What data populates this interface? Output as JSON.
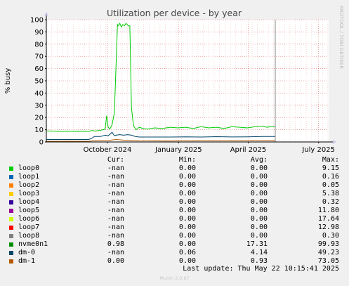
{
  "chart_data": {
    "type": "line",
    "title": "Utilization per device - by year",
    "ylabel": "% busy",
    "side_label": "RRDTOOL / TOBI OETIKER",
    "ylim": [
      0,
      100
    ],
    "yticks": [
      0,
      10,
      20,
      30,
      40,
      50,
      60,
      70,
      80,
      90,
      100
    ],
    "x_range_days": [
      0,
      365
    ],
    "xticks": [
      {
        "label": "October 2024",
        "day": 79
      },
      {
        "label": "January 2025",
        "day": 171
      },
      {
        "label": "April 2025",
        "day": 261
      },
      {
        "label": "July 2025",
        "day": 352
      }
    ],
    "now_marker_day": 296,
    "series": [
      {
        "name": "nvme0n1",
        "color": "#00CC00",
        "x": [
          0,
          20,
          40,
          55,
          60,
          62,
          70,
          76,
          78,
          80,
          82,
          85,
          88,
          90,
          92,
          93,
          95,
          97,
          99,
          101,
          103,
          106,
          108,
          110,
          112,
          113,
          114,
          116,
          118,
          120,
          125,
          130,
          140,
          150,
          160,
          170,
          180,
          190,
          200,
          210,
          220,
          230,
          240,
          250,
          260,
          270,
          280,
          285,
          290,
          296
        ],
        "y": [
          9,
          8.6,
          8.8,
          8.7,
          9.5,
          8.9,
          9.5,
          10.5,
          21.5,
          12,
          10.5,
          14,
          24,
          60,
          96,
          95,
          97,
          94,
          96,
          95,
          97,
          95,
          95,
          28,
          17,
          13,
          12,
          10,
          11,
          12,
          11,
          10.5,
          11.5,
          11,
          12,
          11.5,
          12,
          11,
          12.5,
          11.5,
          12,
          11,
          12.5,
          12,
          11.5,
          12.5,
          13,
          12,
          12.5,
          12.5
        ]
      },
      {
        "name": "dm-0",
        "color": "#00486B",
        "x": [
          0,
          20,
          40,
          55,
          60,
          62,
          70,
          76,
          80,
          85,
          88,
          90,
          95,
          100,
          105,
          110,
          115,
          120,
          140,
          160,
          180,
          200,
          220,
          240,
          260,
          280,
          296
        ],
        "y": [
          2,
          2,
          2,
          2,
          3.5,
          4.5,
          4.5,
          5.5,
          5,
          8,
          5,
          5.5,
          6,
          5.5,
          6,
          5.5,
          4.5,
          4,
          4,
          4,
          4.2,
          4,
          4.3,
          4.1,
          4.2,
          4.5,
          4.5
        ]
      },
      {
        "name": "dm-1",
        "color": "#B35A00",
        "x": [
          0,
          30,
          55,
          62,
          80,
          90,
          100,
          110,
          120,
          160,
          200,
          240,
          280,
          296
        ],
        "y": [
          0.5,
          0.6,
          0.5,
          1,
          1.2,
          2,
          1.5,
          1.2,
          0.9,
          0.8,
          1,
          0.9,
          1.1,
          1
        ]
      }
    ]
  },
  "legend": {
    "headers": {
      "cur": "Cur:",
      "min": "Min:",
      "avg": "Avg:",
      "max": "Max:"
    },
    "rows": [
      {
        "name": "loop0",
        "color": "#00CC00",
        "cur": "-nan",
        "min": "0.00",
        "avg": "0.00",
        "max": "9.15"
      },
      {
        "name": "loop1",
        "color": "#0066B3",
        "cur": "-nan",
        "min": "0.00",
        "avg": "0.00",
        "max": "0.16"
      },
      {
        "name": "loop2",
        "color": "#FF8000",
        "cur": "-nan",
        "min": "0.00",
        "avg": "0.00",
        "max": "0.05"
      },
      {
        "name": "loop3",
        "color": "#FFCC00",
        "cur": "-nan",
        "min": "0.00",
        "avg": "0.00",
        "max": "5.38"
      },
      {
        "name": "loop4",
        "color": "#330099",
        "cur": "-nan",
        "min": "0.00",
        "avg": "0.00",
        "max": "0.32"
      },
      {
        "name": "loop5",
        "color": "#990099",
        "cur": "-nan",
        "min": "0.00",
        "avg": "0.00",
        "max": "11.80"
      },
      {
        "name": "loop6",
        "color": "#CCFF00",
        "cur": "-nan",
        "min": "0.00",
        "avg": "0.00",
        "max": "17.64"
      },
      {
        "name": "loop7",
        "color": "#FF0000",
        "cur": "-nan",
        "min": "0.00",
        "avg": "0.00",
        "max": "12.98"
      },
      {
        "name": "loop8",
        "color": "#808080",
        "cur": "-nan",
        "min": "0.00",
        "avg": "0.00",
        "max": "0.30"
      },
      {
        "name": "nvme0n1",
        "color": "#008F00",
        "cur": "0.98",
        "min": "0.00",
        "avg": "17.31",
        "max": "99.93"
      },
      {
        "name": "dm-0",
        "color": "#00486B",
        "cur": "-nan",
        "min": "0.06",
        "avg": "4.14",
        "max": "49.23"
      },
      {
        "name": "dm-1",
        "color": "#B35A00",
        "cur": "0.00",
        "min": "0.00",
        "avg": "0.93",
        "max": "73.05"
      }
    ]
  },
  "last_update": "Last update: Thu May 22 10:15:41 2025",
  "footer": "Munin 2.0.67"
}
